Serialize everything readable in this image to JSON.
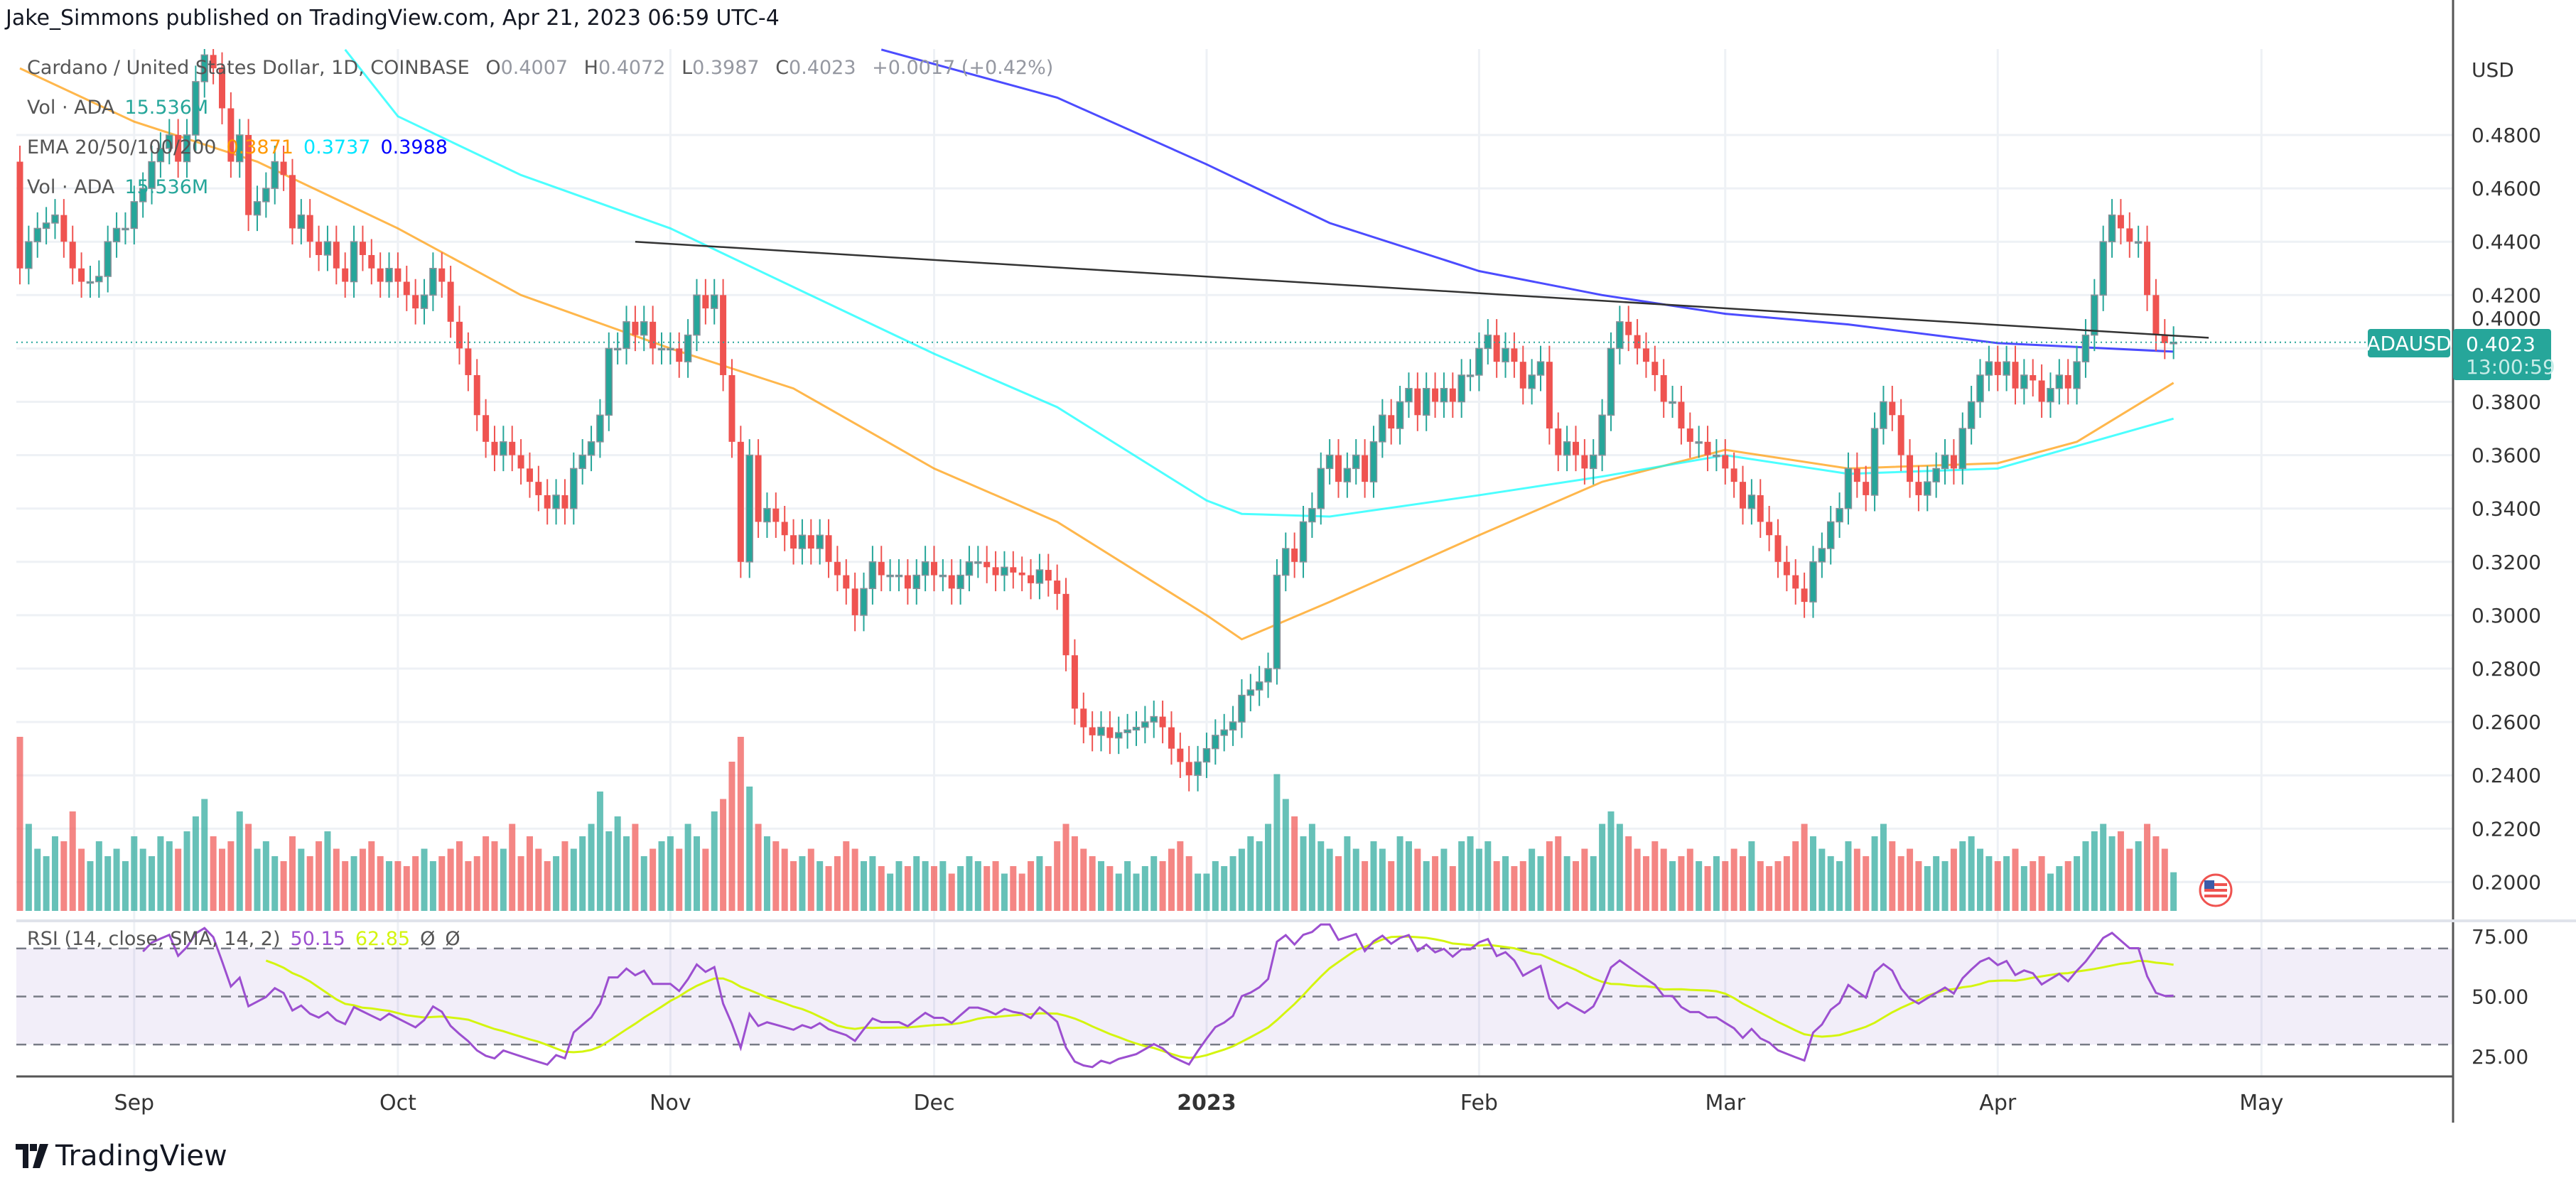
{
  "header": {
    "published": "Jake_Simmons published on TradingView.com, Apr 21, 2023 06:59 UTC-4"
  },
  "legend": {
    "symbol": "Cardano / United States Dollar, 1D, COINBASE",
    "o_label": "O",
    "o": "0.4007",
    "h_label": "H",
    "h": "0.4072",
    "l_label": "L",
    "l": "0.3987",
    "c_label": "C",
    "c": "0.4023",
    "change": "+0.0017 (+0.42%)",
    "vol_label": "Vol · ADA",
    "vol_value": "15.536M",
    "ema_label": "EMA 20/50/100/200",
    "ema_a": "0.3871",
    "ema_b": "0.3737",
    "ema_c": "0.3988",
    "vol2_label": "Vol · ADA",
    "vol2_value": "15.536M",
    "rsi_label": "RSI (14, close, SMA, 14, 2)",
    "rsi_value": "50.15",
    "rsi_sma_value": "62.85",
    "rsi_na1": "Ø",
    "rsi_na2": "Ø"
  },
  "price_axis": {
    "currency": "USD",
    "ticks": [
      "0.4800",
      "0.4600",
      "0.4400",
      "0.4200",
      "0.4000",
      "0.3800",
      "0.3600",
      "0.3400",
      "0.3200",
      "0.3000",
      "0.2800",
      "0.2600",
      "0.2400",
      "0.2200",
      "0.2000"
    ]
  },
  "last_price": {
    "symbol": "ADAUSD",
    "price": "0.4023",
    "countdown": "13:00:59"
  },
  "rsi_axis": {
    "ticks": [
      "75.00",
      "50.00",
      "25.00"
    ]
  },
  "time_axis": {
    "labels": [
      {
        "text": "Sep",
        "date": "2022-09-01"
      },
      {
        "text": "Oct",
        "date": "2022-10-01"
      },
      {
        "text": "Nov",
        "date": "2022-11-01"
      },
      {
        "text": "Dec",
        "date": "2022-12-01"
      },
      {
        "text": "2023",
        "date": "2023-01-01"
      },
      {
        "text": "Feb",
        "date": "2023-02-01"
      },
      {
        "text": "Mar",
        "date": "2023-03-01"
      },
      {
        "text": "Apr",
        "date": "2023-04-01"
      },
      {
        "text": "May",
        "date": "2023-05-01"
      }
    ]
  },
  "brand": {
    "name": "TradingView"
  },
  "colors": {
    "up": "#26a69a",
    "down": "#ef5350",
    "ema_a": "#ff9800",
    "ema_b": "#00ffff",
    "ema_c": "#0000ff",
    "rsi": "#9c4fd0",
    "rsi_sma": "#d4f50f",
    "trendline": "#333333"
  },
  "chart_data": {
    "type": "candlestick",
    "start_date": "2022-08-19",
    "first_open": 0.47,
    "ylim": [
      0.19,
      0.512
    ],
    "close": [
      0.43,
      0.44,
      0.445,
      0.447,
      0.45,
      0.44,
      0.43,
      0.425,
      0.425,
      0.427,
      0.44,
      0.445,
      0.445,
      0.455,
      0.46,
      0.47,
      0.475,
      0.48,
      0.47,
      0.48,
      0.5,
      0.51,
      0.505,
      0.49,
      0.47,
      0.48,
      0.45,
      0.455,
      0.46,
      0.47,
      0.465,
      0.445,
      0.45,
      0.44,
      0.435,
      0.44,
      0.43,
      0.425,
      0.44,
      0.435,
      0.43,
      0.425,
      0.43,
      0.425,
      0.42,
      0.415,
      0.42,
      0.43,
      0.425,
      0.41,
      0.4,
      0.39,
      0.375,
      0.365,
      0.36,
      0.365,
      0.36,
      0.355,
      0.35,
      0.345,
      0.34,
      0.345,
      0.34,
      0.355,
      0.36,
      0.365,
      0.375,
      0.4,
      0.4,
      0.41,
      0.405,
      0.41,
      0.4,
      0.4,
      0.4,
      0.395,
      0.405,
      0.42,
      0.415,
      0.42,
      0.39,
      0.365,
      0.32,
      0.36,
      0.335,
      0.34,
      0.335,
      0.33,
      0.325,
      0.33,
      0.325,
      0.33,
      0.32,
      0.315,
      0.31,
      0.3,
      0.31,
      0.32,
      0.315,
      0.315,
      0.315,
      0.31,
      0.315,
      0.32,
      0.315,
      0.315,
      0.31,
      0.315,
      0.32,
      0.32,
      0.318,
      0.315,
      0.318,
      0.316,
      0.315,
      0.312,
      0.317,
      0.313,
      0.308,
      0.285,
      0.265,
      0.258,
      0.255,
      0.258,
      0.254,
      0.256,
      0.257,
      0.258,
      0.26,
      0.262,
      0.258,
      0.25,
      0.245,
      0.24,
      0.245,
      0.25,
      0.255,
      0.257,
      0.26,
      0.27,
      0.272,
      0.275,
      0.28,
      0.315,
      0.325,
      0.32,
      0.335,
      0.34,
      0.355,
      0.36,
      0.35,
      0.355,
      0.36,
      0.35,
      0.365,
      0.375,
      0.37,
      0.38,
      0.385,
      0.375,
      0.385,
      0.38,
      0.385,
      0.38,
      0.39,
      0.39,
      0.4,
      0.405,
      0.395,
      0.4,
      0.395,
      0.385,
      0.39,
      0.395,
      0.37,
      0.36,
      0.365,
      0.36,
      0.355,
      0.36,
      0.375,
      0.4,
      0.41,
      0.405,
      0.4,
      0.395,
      0.39,
      0.38,
      0.38,
      0.37,
      0.365,
      0.365,
      0.36,
      0.36,
      0.355,
      0.35,
      0.34,
      0.345,
      0.335,
      0.33,
      0.32,
      0.315,
      0.31,
      0.305,
      0.32,
      0.325,
      0.335,
      0.34,
      0.355,
      0.35,
      0.345,
      0.37,
      0.38,
      0.375,
      0.36,
      0.35,
      0.345,
      0.35,
      0.355,
      0.36,
      0.355,
      0.37,
      0.38,
      0.39,
      0.395,
      0.39,
      0.395,
      0.385,
      0.39,
      0.388,
      0.38,
      0.385,
      0.39,
      0.385,
      0.395,
      0.405,
      0.42,
      0.44,
      0.45,
      0.445,
      0.44,
      0.44,
      0.42,
      0.405,
      0.402,
      0.4023
    ],
    "volume_millions": [
      70,
      35,
      25,
      22,
      30,
      28,
      40,
      25,
      20,
      28,
      22,
      25,
      20,
      30,
      25,
      22,
      30,
      28,
      25,
      32,
      38,
      45,
      30,
      25,
      28,
      40,
      35,
      25,
      28,
      22,
      20,
      30,
      25,
      22,
      28,
      32,
      25,
      20,
      22,
      25,
      28,
      22,
      20,
      20,
      18,
      22,
      25,
      20,
      22,
      25,
      28,
      20,
      22,
      30,
      28,
      25,
      35,
      22,
      30,
      25,
      20,
      22,
      28,
      25,
      30,
      35,
      48,
      32,
      38,
      30,
      35,
      22,
      25,
      28,
      30,
      25,
      35,
      30,
      25,
      40,
      45,
      60,
      70,
      50,
      35,
      30,
      28,
      25,
      20,
      22,
      25,
      20,
      18,
      22,
      28,
      25,
      20,
      22,
      18,
      15,
      20,
      18,
      22,
      20,
      18,
      20,
      15,
      18,
      22,
      20,
      18,
      20,
      15,
      18,
      15,
      20,
      22,
      18,
      28,
      35,
      30,
      25,
      22,
      20,
      18,
      15,
      20,
      15,
      18,
      22,
      20,
      25,
      28,
      22,
      15,
      15,
      20,
      18,
      22,
      25,
      30,
      28,
      35,
      55,
      45,
      38,
      30,
      35,
      28,
      25,
      22,
      30,
      25,
      20,
      28,
      25,
      20,
      30,
      28,
      25,
      20,
      22,
      25,
      18,
      28,
      30,
      25,
      28,
      20,
      22,
      18,
      20,
      25,
      22,
      28,
      30,
      22,
      20,
      25,
      22,
      35,
      40,
      35,
      30,
      25,
      22,
      28,
      25,
      20,
      22,
      25,
      20,
      18,
      22,
      20,
      25,
      22,
      28,
      20,
      18,
      20,
      22,
      28,
      35,
      30,
      25,
      22,
      20,
      28,
      25,
      22,
      30,
      35,
      28,
      22,
      25,
      20,
      18,
      22,
      20,
      25,
      28,
      30,
      25,
      22,
      20,
      22,
      25,
      18,
      20,
      22,
      15,
      18,
      20,
      22,
      28,
      32,
      35,
      30,
      32,
      25,
      28,
      35,
      30,
      25,
      15.536
    ],
    "ema_lines": [
      {
        "name": "EMA 20/50/100/200",
        "color_key": "ema_a",
        "points": [
          [
            "2022-08-19",
            0.505
          ],
          [
            "2022-09-01",
            0.485
          ],
          [
            "2022-09-15",
            0.47
          ],
          [
            "2022-10-01",
            0.445
          ],
          [
            "2022-10-15",
            0.42
          ],
          [
            "2022-11-01",
            0.4
          ],
          [
            "2022-11-15",
            0.385
          ],
          [
            "2022-12-01",
            0.355
          ],
          [
            "2022-12-15",
            0.335
          ],
          [
            "2023-01-01",
            0.3
          ],
          [
            "2023-01-05",
            0.291
          ],
          [
            "2023-01-15",
            0.305
          ],
          [
            "2023-02-01",
            0.33
          ],
          [
            "2023-02-15",
            0.35
          ],
          [
            "2023-03-01",
            0.362
          ],
          [
            "2023-03-15",
            0.355
          ],
          [
            "2023-04-01",
            0.357
          ],
          [
            "2023-04-10",
            0.365
          ],
          [
            "2023-04-21",
            0.3871
          ]
        ]
      },
      {
        "name": "EMA 20/50/100/200",
        "color_key": "ema_b",
        "points": [
          [
            "2022-09-25",
            0.512
          ],
          [
            "2022-10-01",
            0.487
          ],
          [
            "2022-10-15",
            0.465
          ],
          [
            "2022-11-01",
            0.445
          ],
          [
            "2022-11-15",
            0.423
          ],
          [
            "2022-12-01",
            0.398
          ],
          [
            "2022-12-15",
            0.378
          ],
          [
            "2023-01-01",
            0.343
          ],
          [
            "2023-01-05",
            0.338
          ],
          [
            "2023-01-15",
            0.337
          ],
          [
            "2023-02-01",
            0.345
          ],
          [
            "2023-02-15",
            0.352
          ],
          [
            "2023-03-01",
            0.36
          ],
          [
            "2023-03-15",
            0.353
          ],
          [
            "2023-04-01",
            0.355
          ],
          [
            "2023-04-21",
            0.3737
          ]
        ]
      },
      {
        "name": "EMA 20/50/100/200",
        "color_key": "ema_c",
        "points": [
          [
            "2022-11-25",
            0.512
          ],
          [
            "2022-12-15",
            0.494
          ],
          [
            "2023-01-01",
            0.469
          ],
          [
            "2023-01-15",
            0.447
          ],
          [
            "2023-02-01",
            0.429
          ],
          [
            "2023-02-15",
            0.42
          ],
          [
            "2023-03-01",
            0.413
          ],
          [
            "2023-03-15",
            0.409
          ],
          [
            "2023-04-01",
            0.402
          ],
          [
            "2023-04-21",
            0.3988
          ]
        ]
      }
    ],
    "trendline": [
      [
        "2022-10-28",
        0.44
      ],
      [
        "2023-04-25",
        0.404
      ]
    ],
    "rsi": {
      "period": 14,
      "sma": 14,
      "upper": 70,
      "middle": 50,
      "lower": 30,
      "ylim": [
        16,
        80
      ]
    }
  }
}
